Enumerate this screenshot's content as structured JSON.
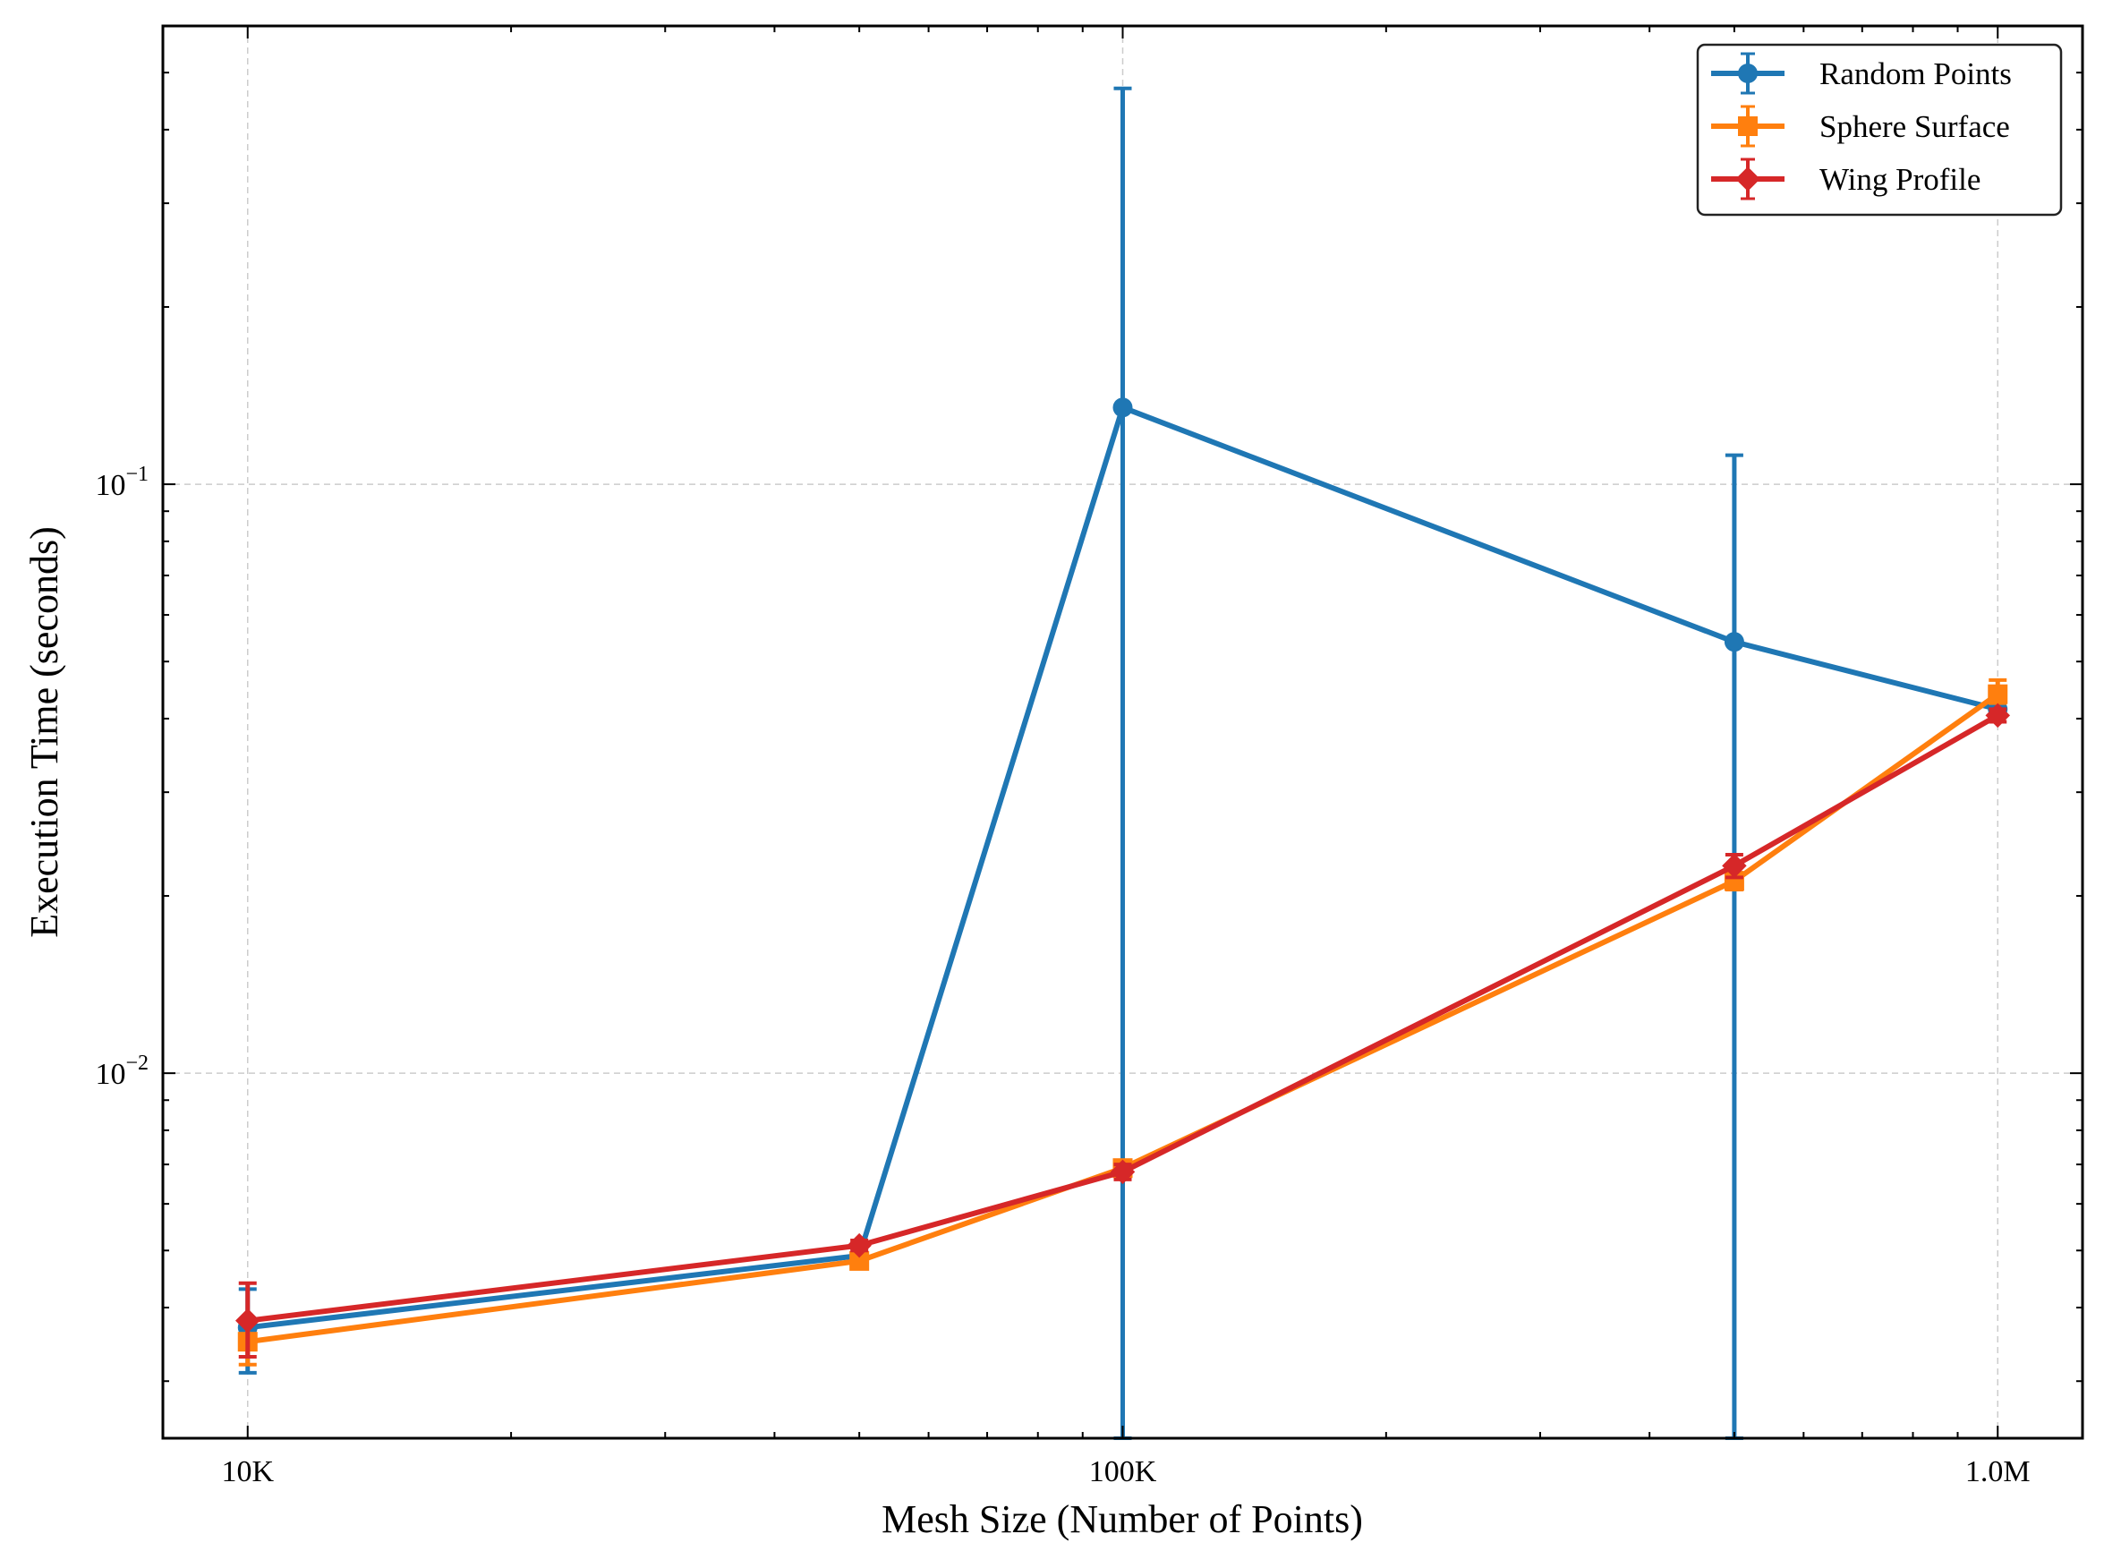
{
  "chart_data": {
    "type": "line",
    "xlabel": "Mesh Size (Number of Points)",
    "ylabel": "Execution Time (seconds)",
    "xscale": "log",
    "yscale": "log",
    "xlim": [
      8000,
      1250000
    ],
    "ylim": [
      0.0024,
      0.6
    ],
    "x_ticks": [
      {
        "value": 10000,
        "label": "10K"
      },
      {
        "value": 100000,
        "label": "100K"
      },
      {
        "value": 1000000,
        "label": "1.0M"
      }
    ],
    "y_ticks": [
      {
        "value": 0.1,
        "base": "10",
        "exp": "−1"
      },
      {
        "value": 0.01,
        "base": "10",
        "exp": "−2"
      }
    ],
    "grid": true,
    "legend_position": "top-right",
    "series": [
      {
        "name": "Random Points",
        "color": "#1f77b4",
        "marker": "circle",
        "x": [
          10000,
          50000,
          100000,
          500000,
          1000000
        ],
        "y": [
          0.0037,
          0.0049,
          0.135,
          0.054,
          0.0415
        ],
        "yerr_low": [
          0.0031,
          0.0049,
          0.0024,
          0.0024,
          0.0415
        ],
        "yerr_high": [
          0.0043,
          0.0049,
          0.47,
          0.112,
          0.0415
        ]
      },
      {
        "name": "Sphere Surface",
        "color": "#ff7f0e",
        "marker": "square",
        "x": [
          10000,
          50000,
          100000,
          500000,
          1000000
        ],
        "y": [
          0.0035,
          0.0048,
          0.0069,
          0.0212,
          0.044
        ],
        "yerr_low": [
          0.0032,
          0.0047,
          0.0067,
          0.0205,
          0.0425
        ],
        "yerr_high": [
          0.0038,
          0.0049,
          0.0071,
          0.0219,
          0.0465
        ]
      },
      {
        "name": "Wing Profile",
        "color": "#d62728",
        "marker": "diamond",
        "x": [
          10000,
          50000,
          100000,
          500000,
          1000000
        ],
        "y": [
          0.0038,
          0.0051,
          0.0068,
          0.0225,
          0.0405
        ],
        "yerr_low": [
          0.0033,
          0.005,
          0.0066,
          0.0215,
          0.0395
        ],
        "yerr_high": [
          0.0044,
          0.0052,
          0.007,
          0.0235,
          0.0415
        ]
      }
    ]
  }
}
